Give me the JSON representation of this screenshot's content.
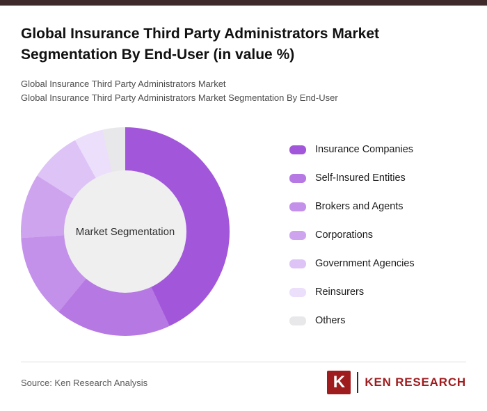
{
  "page": {
    "title": "Global Insurance Third Party Administrators Market Segmentation By End-User (in value %)",
    "subtitle1": "Global Insurance Third Party Administrators Market",
    "subtitle2": "Global Insurance Third Party Administrators Market Segmentation By End-User"
  },
  "chart_data": {
    "type": "pie",
    "donut": true,
    "title": "Global Insurance Third Party Administrators Market Segmentation By End-User (in value %)",
    "center_label": "Market Segmentation",
    "legend_position": "right",
    "start_angle_deg": 0,
    "direction": "clockwise",
    "series": [
      {
        "name": "Insurance Companies",
        "value": 43,
        "color": "#a257da"
      },
      {
        "name": "Self-Insured Entities",
        "value": 18,
        "color": "#b678e3"
      },
      {
        "name": "Brokers and Agents",
        "value": 13,
        "color": "#c491ea"
      },
      {
        "name": "Corporations",
        "value": 10,
        "color": "#cfa4ef"
      },
      {
        "name": "Government Agencies",
        "value": 8,
        "color": "#dec3f6"
      },
      {
        "name": "Reinsurers",
        "value": 4.5,
        "color": "#ecdffb"
      },
      {
        "name": "Others",
        "value": 3.5,
        "color": "#e8e7e9"
      }
    ]
  },
  "footer": {
    "source": "Source: Ken Research Analysis",
    "logo_letter": "K",
    "logo_text": "KEN RESEARCH"
  },
  "colors": {
    "top_bar": "#3e2a2a",
    "brand_red": "#9e1b1e",
    "donut_hole": "#efeff0"
  }
}
